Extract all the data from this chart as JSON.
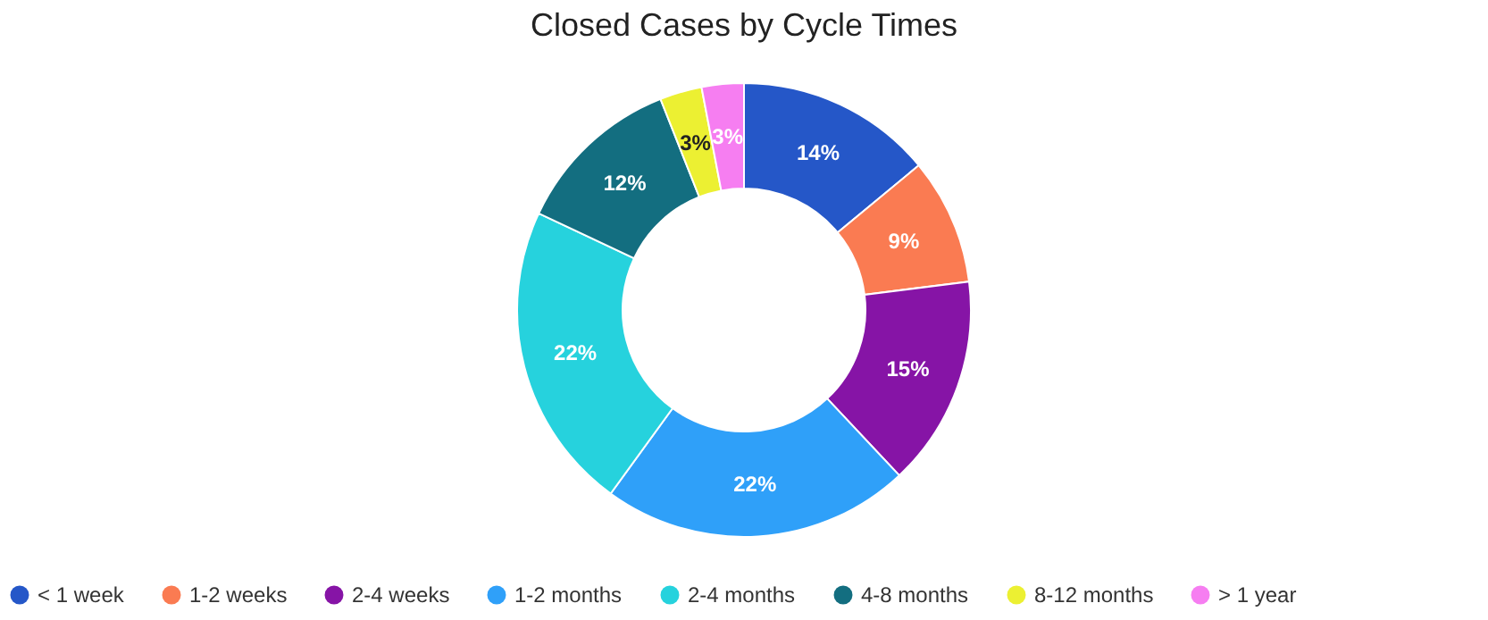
{
  "chart_data": {
    "type": "donut",
    "title": "Closed Cases by Cycle Times",
    "categories": [
      "< 1 week",
      "1-2 weeks",
      "2-4 weeks",
      "1-2 months",
      "2-4 months",
      "4-8 months",
      "8-12 months",
      "> 1 year"
    ],
    "values": [
      14,
      9,
      15,
      22,
      22,
      12,
      3,
      3
    ],
    "colors": [
      "#2557c8",
      "#fa7b52",
      "#8614a6",
      "#2fa0f9",
      "#26d2dd",
      "#136e80",
      "#ecf032",
      "#f67ef1"
    ],
    "value_labels": [
      "14%",
      "9%",
      "15%",
      "22%",
      "22%",
      "12%",
      "3%",
      "3%"
    ],
    "legend": "bottom"
  }
}
